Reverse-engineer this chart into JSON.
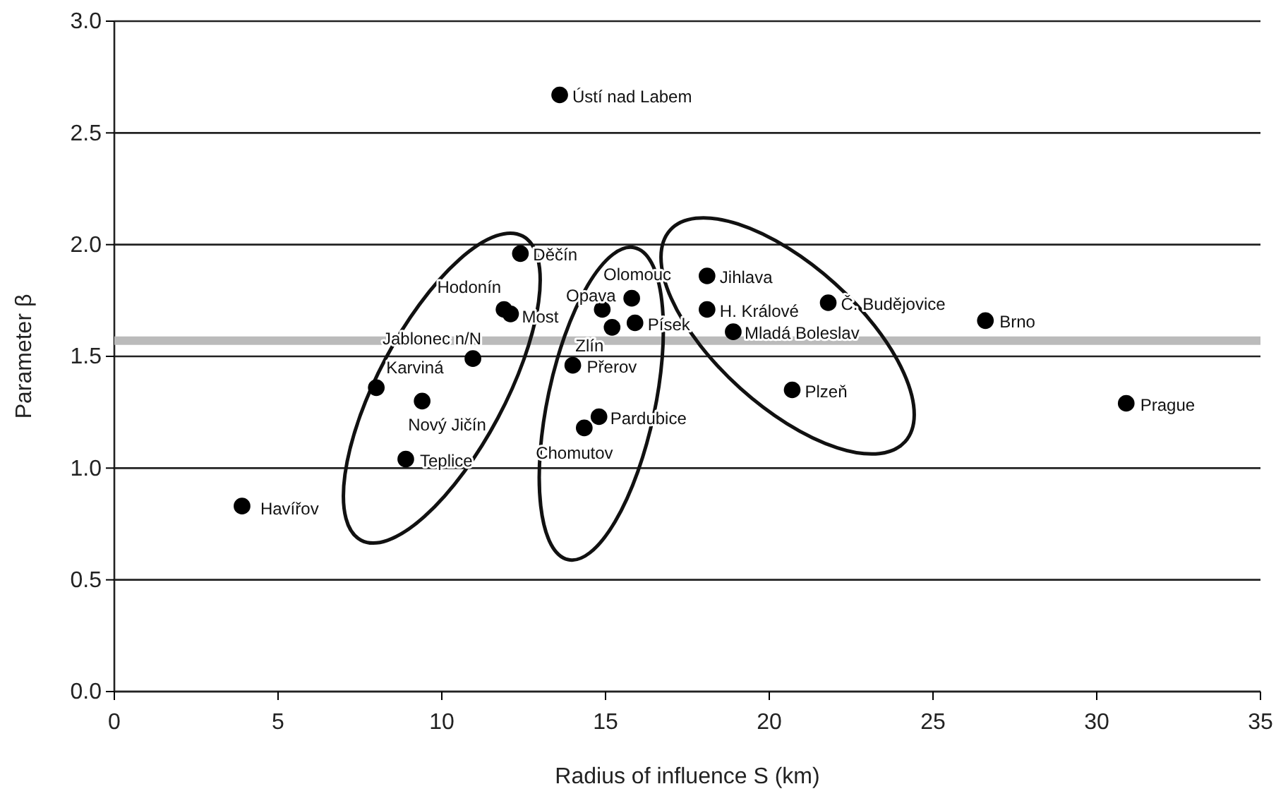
{
  "chart_data": {
    "type": "scatter",
    "xlabel": "Radius of influence S (km)",
    "ylabel": "Parameter β",
    "x": [
      13.6,
      12.4,
      11.9,
      12.1,
      10.95,
      8.0,
      9.4,
      8.9,
      3.9,
      14.9,
      15.8,
      15.2,
      15.9,
      14.0,
      14.8,
      14.35,
      18.1,
      18.1,
      18.9,
      21.8,
      20.7,
      26.6,
      30.9
    ],
    "series": [
      {
        "color": "#000000",
        "values": [
          2.67,
          1.96,
          1.71,
          1.69,
          1.49,
          1.36,
          1.3,
          1.04,
          0.83,
          1.71,
          1.76,
          1.63,
          1.65,
          1.46,
          1.23,
          1.18,
          1.86,
          1.71,
          1.61,
          1.74,
          1.35,
          1.66,
          1.29
        ]
      }
    ],
    "xlim": [
      0,
      35
    ],
    "xticks": [
      0,
      5,
      10,
      15,
      20,
      25,
      30,
      35
    ],
    "ylim": [
      0,
      3
    ],
    "yticks": [
      {
        "value": 0,
        "label": "0.0"
      },
      {
        "value": 0.5,
        "label": "0.5"
      },
      {
        "value": 1,
        "label": "1.0"
      },
      {
        "value": 1.5,
        "label": "1.5"
      },
      {
        "value": 2,
        "label": "2.0"
      },
      {
        "value": 2.5,
        "label": "2.5"
      },
      {
        "value": 3,
        "label": "3.0"
      }
    ],
    "grid": "y",
    "marker": "circle",
    "ref_lines": [
      {
        "axis": "y",
        "value": 1.57,
        "color": "#bbbbbb"
      }
    ],
    "annotations": [
      {
        "text": "Ústí nad Labem",
        "x": 13.6,
        "y": 2.67
      },
      {
        "text": "Děčín",
        "x": 12.4,
        "y": 1.96
      },
      {
        "text": "Hodonín",
        "x": 11.9,
        "y": 1.71
      },
      {
        "text": "Most",
        "x": 12.1,
        "y": 1.69
      },
      {
        "text": "Jablonec n/N",
        "x": 10.95,
        "y": 1.49
      },
      {
        "text": "Karviná",
        "x": 8.0,
        "y": 1.36
      },
      {
        "text": "Nový Jičín",
        "x": 9.4,
        "y": 1.3
      },
      {
        "text": "Teplice",
        "x": 8.9,
        "y": 1.04
      },
      {
        "text": "Havířov",
        "x": 3.9,
        "y": 0.83
      },
      {
        "text": "Opava",
        "x": 14.9,
        "y": 1.71
      },
      {
        "text": "Olomouc",
        "x": 15.8,
        "y": 1.76
      },
      {
        "text": "Zlín",
        "x": 15.2,
        "y": 1.63
      },
      {
        "text": "Písek",
        "x": 15.9,
        "y": 1.65
      },
      {
        "text": "Přerov",
        "x": 14.0,
        "y": 1.46
      },
      {
        "text": "Pardubice",
        "x": 14.8,
        "y": 1.23
      },
      {
        "text": "Chomutov",
        "x": 14.35,
        "y": 1.18
      },
      {
        "text": "Jihlava",
        "x": 18.1,
        "y": 1.86
      },
      {
        "text": "H. Králové",
        "x": 18.1,
        "y": 1.71
      },
      {
        "text": "Mladá Boleslav",
        "x": 18.9,
        "y": 1.61
      },
      {
        "text": "Č. Budějovice",
        "x": 21.8,
        "y": 1.74
      },
      {
        "text": "Plzeň",
        "x": 20.7,
        "y": 1.35
      },
      {
        "text": "Brno",
        "x": 26.6,
        "y": 1.66
      },
      {
        "text": "Prague",
        "x": 30.9,
        "y": 1.29
      }
    ]
  }
}
